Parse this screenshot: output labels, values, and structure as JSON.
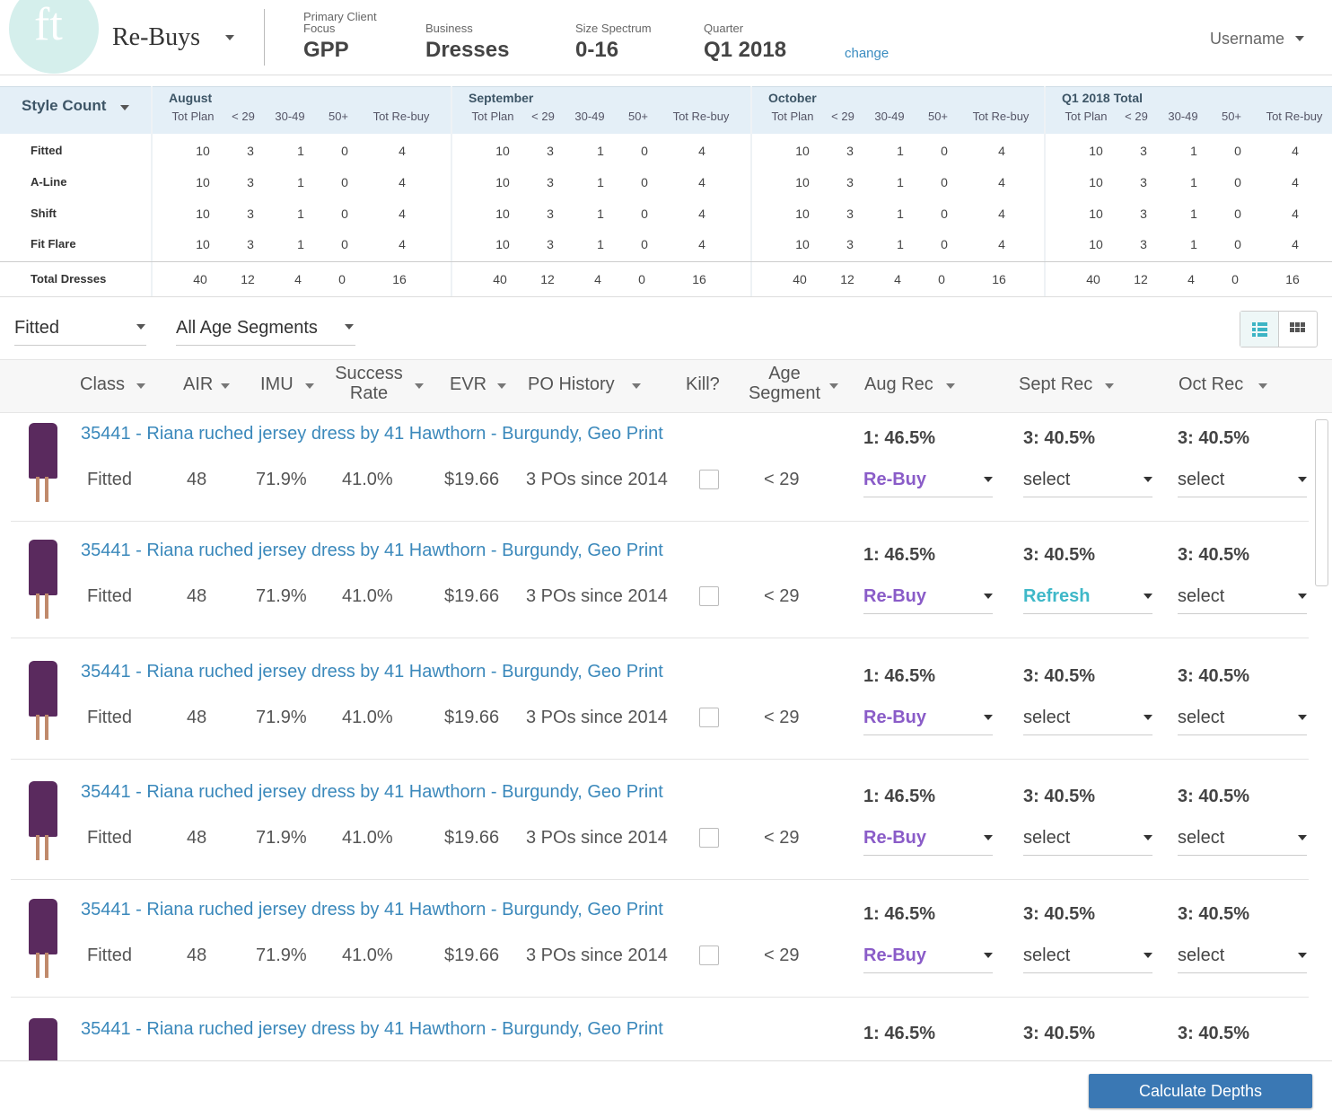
{
  "header": {
    "logo": "ft",
    "app": "Re-Buys",
    "fields": [
      {
        "label": "Primary Client Focus",
        "value": "GPP"
      },
      {
        "label": "Business",
        "value": "Dresses"
      },
      {
        "label": "Size Spectrum",
        "value": "0-16"
      },
      {
        "label": "Quarter",
        "value": "Q1 2018"
      }
    ],
    "change": "change",
    "user": "Username"
  },
  "summary": {
    "title": "Style Count",
    "groups": [
      {
        "name": "August",
        "columns": [
          "Tot Plan",
          "< 29",
          "30-49",
          "50+",
          "Tot Re-buy"
        ]
      },
      {
        "name": "September",
        "columns": [
          "Tot Plan",
          "< 29",
          "30-49",
          "50+",
          "Tot Re-buy"
        ]
      },
      {
        "name": "October",
        "columns": [
          "Tot Plan",
          "< 29",
          "30-49",
          "50+",
          "Tot Re-buy"
        ]
      },
      {
        "name": "Q1 2018 Total",
        "columns": [
          "Tot Plan",
          "< 29",
          "30-49",
          "50+",
          "Tot Re-buy"
        ]
      }
    ],
    "rows": [
      {
        "label": "Fitted",
        "values": [
          [
            10,
            3,
            1,
            0,
            4
          ],
          [
            10,
            3,
            1,
            0,
            4
          ],
          [
            10,
            3,
            1,
            0,
            4
          ],
          [
            10,
            3,
            1,
            0,
            4
          ]
        ]
      },
      {
        "label": "A-Line",
        "values": [
          [
            10,
            3,
            1,
            0,
            4
          ],
          [
            10,
            3,
            1,
            0,
            4
          ],
          [
            10,
            3,
            1,
            0,
            4
          ],
          [
            10,
            3,
            1,
            0,
            4
          ]
        ]
      },
      {
        "label": "Shift",
        "values": [
          [
            10,
            3,
            1,
            0,
            4
          ],
          [
            10,
            3,
            1,
            0,
            4
          ],
          [
            10,
            3,
            1,
            0,
            4
          ],
          [
            10,
            3,
            1,
            0,
            4
          ]
        ]
      },
      {
        "label": "Fit Flare",
        "values": [
          [
            10,
            3,
            1,
            0,
            4
          ],
          [
            10,
            3,
            1,
            0,
            4
          ],
          [
            10,
            3,
            1,
            0,
            4
          ],
          [
            10,
            3,
            1,
            0,
            4
          ]
        ]
      }
    ],
    "total": {
      "label": "Total Dresses",
      "values": [
        [
          40,
          12,
          4,
          0,
          16
        ],
        [
          40,
          12,
          4,
          0,
          16
        ],
        [
          40,
          12,
          4,
          0,
          16
        ],
        [
          40,
          12,
          4,
          0,
          16
        ]
      ]
    }
  },
  "filters": [
    "Fitted",
    "All Age Segments"
  ],
  "list": {
    "columns": [
      "Class",
      "AIR",
      "IMU",
      "Success Rate",
      "EVR",
      "PO History",
      "Kill?",
      "Age Segment",
      "Aug Rec",
      "Sept Rec",
      "Oct Rec"
    ],
    "items": [
      {
        "title": "35441 - Riana ruched jersey dress by 41 Hawthorn - Burgundy, Geo Print",
        "class": "Fitted",
        "air": "48",
        "imu": "71.9%",
        "success_rate": "41.0%",
        "evr": "$19.66",
        "po_history": "3 POs since 2014",
        "age_segment": "< 29",
        "recs": [
          {
            "score": "1: 46.5%",
            "selection": "Re-Buy",
            "color": "#8a5cc8"
          },
          {
            "score": "3: 40.5%",
            "selection": "select",
            "color": "#444444"
          },
          {
            "score": "3: 40.5%",
            "selection": "select",
            "color": "#444444"
          }
        ]
      },
      {
        "title": "35441 - Riana ruched jersey dress by 41 Hawthorn - Burgundy, Geo Print",
        "class": "Fitted",
        "air": "48",
        "imu": "71.9%",
        "success_rate": "41.0%",
        "evr": "$19.66",
        "po_history": "3 POs since 2014",
        "age_segment": "< 29",
        "recs": [
          {
            "score": "1: 46.5%",
            "selection": "Re-Buy",
            "color": "#8a5cc8"
          },
          {
            "score": "3: 40.5%",
            "selection": "Refresh",
            "color": "#3fb8c8"
          },
          {
            "score": "3: 40.5%",
            "selection": "select",
            "color": "#444444"
          }
        ]
      },
      {
        "title": "35441 - Riana ruched jersey dress by 41 Hawthorn - Burgundy, Geo Print",
        "class": "Fitted",
        "air": "48",
        "imu": "71.9%",
        "success_rate": "41.0%",
        "evr": "$19.66",
        "po_history": "3 POs since 2014",
        "age_segment": "< 29",
        "recs": [
          {
            "score": "1: 46.5%",
            "selection": "Re-Buy",
            "color": "#8a5cc8"
          },
          {
            "score": "3: 40.5%",
            "selection": "select",
            "color": "#444444"
          },
          {
            "score": "3: 40.5%",
            "selection": "select",
            "color": "#444444"
          }
        ]
      },
      {
        "title": "35441 - Riana ruched jersey dress by 41 Hawthorn - Burgundy, Geo Print",
        "class": "Fitted",
        "air": "48",
        "imu": "71.9%",
        "success_rate": "41.0%",
        "evr": "$19.66",
        "po_history": "3 POs since 2014",
        "age_segment": "< 29",
        "recs": [
          {
            "score": "1: 46.5%",
            "selection": "Re-Buy",
            "color": "#8a5cc8"
          },
          {
            "score": "3: 40.5%",
            "selection": "select",
            "color": "#444444"
          },
          {
            "score": "3: 40.5%",
            "selection": "select",
            "color": "#444444"
          }
        ]
      },
      {
        "title": "35441 - Riana ruched jersey dress by 41 Hawthorn - Burgundy, Geo Print",
        "class": "Fitted",
        "air": "48",
        "imu": "71.9%",
        "success_rate": "41.0%",
        "evr": "$19.66",
        "po_history": "3 POs since 2014",
        "age_segment": "< 29",
        "recs": [
          {
            "score": "1: 46.5%",
            "selection": "Re-Buy",
            "color": "#8a5cc8"
          },
          {
            "score": "3: 40.5%",
            "selection": "select",
            "color": "#444444"
          },
          {
            "score": "3: 40.5%",
            "selection": "select",
            "color": "#444444"
          }
        ]
      },
      {
        "title": "35441 - Riana ruched jersey dress by 41 Hawthorn - Burgundy, Geo Print",
        "recs": [
          {
            "score": "1: 46.5%"
          },
          {
            "score": "3: 40.5%"
          },
          {
            "score": "3: 40.5%"
          }
        ]
      }
    ]
  },
  "button": "Calculate Depths"
}
